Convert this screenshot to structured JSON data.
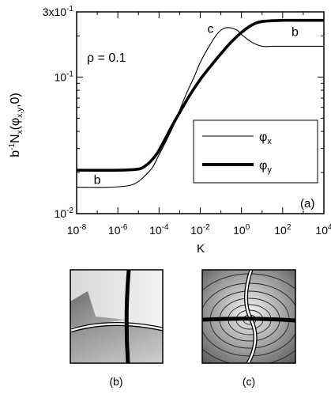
{
  "chart_data": {
    "type": "line",
    "annotation": "ρ = 0.1",
    "panel_label": "(a)",
    "ylabel_parts": {
      "b": "b",
      "exp": "-1",
      "N": "N",
      "x": "x",
      "open": "(φ",
      "xy": "x,y",
      "close": ",0)"
    },
    "xlabel": "K",
    "x_ticks": [
      {
        "value": -8,
        "base": "10",
        "exp": "-8"
      },
      {
        "value": -6,
        "base": "10",
        "exp": "-6"
      },
      {
        "value": -4,
        "base": "10",
        "exp": "-4"
      },
      {
        "value": -2,
        "base": "10",
        "exp": "-2"
      },
      {
        "value": 0,
        "base": "10",
        "exp": "0"
      },
      {
        "value": 2,
        "base": "10",
        "exp": "2"
      },
      {
        "value": 4,
        "base": "10",
        "exp": "4"
      }
    ],
    "y_ticks": [
      {
        "value": 0.01,
        "base": "10",
        "exp": "-2"
      },
      {
        "value": 0.1,
        "base": "10",
        "exp": "-1"
      },
      {
        "value": 0.3,
        "base": "3x10",
        "exp": "-1"
      }
    ],
    "x_scale": "log",
    "y_scale": "log",
    "xlim_log10": [
      -8,
      4
    ],
    "ylim": [
      0.01,
      0.3
    ],
    "legend": {
      "entries": [
        {
          "greek": "φ",
          "sub": "x",
          "line_weight": "thin"
        },
        {
          "greek": "φ",
          "sub": "y",
          "line_weight": "thick"
        }
      ],
      "placement": "right-middle"
    },
    "curve_labels": [
      {
        "text": "b",
        "x_log10": -7.0,
        "y": 0.0165
      },
      {
        "text": "c",
        "x_log10": -1.5,
        "y": 0.21
      },
      {
        "text": "b",
        "x_log10": 2.6,
        "y": 0.2
      }
    ],
    "series": [
      {
        "name": "φx",
        "style": "thin",
        "x_log10": [
          -8,
          -6.5,
          -5.5,
          -5,
          -4.6,
          -4.3,
          -4,
          -3.7,
          -3.3,
          -3,
          -2.7,
          -2.3,
          -2,
          -1.6,
          -1.2,
          -0.9,
          -0.6,
          -0.2,
          0,
          0.5,
          1,
          1.5,
          2,
          3,
          4
        ],
        "y": [
          0.0156,
          0.0156,
          0.016,
          0.0172,
          0.0195,
          0.022,
          0.027,
          0.033,
          0.044,
          0.057,
          0.074,
          0.1,
          0.128,
          0.165,
          0.205,
          0.225,
          0.23,
          0.22,
          0.205,
          0.18,
          0.168,
          0.168,
          0.168,
          0.168,
          0.168
        ]
      },
      {
        "name": "φy",
        "style": "thick",
        "x_log10": [
          -8,
          -6,
          -5,
          -4.7,
          -4.4,
          -4.1,
          -3.8,
          -3.4,
          -3,
          -2.5,
          -2,
          -1.5,
          -1,
          -0.5,
          0,
          0.5,
          1,
          2,
          3,
          4
        ],
        "y": [
          0.0208,
          0.0208,
          0.0212,
          0.0222,
          0.0242,
          0.0275,
          0.033,
          0.043,
          0.055,
          0.074,
          0.096,
          0.12,
          0.148,
          0.18,
          0.212,
          0.24,
          0.255,
          0.26,
          0.26,
          0.26
        ]
      }
    ]
  },
  "subpanels": [
    {
      "label": "(b)"
    },
    {
      "label": "(c)"
    }
  ]
}
